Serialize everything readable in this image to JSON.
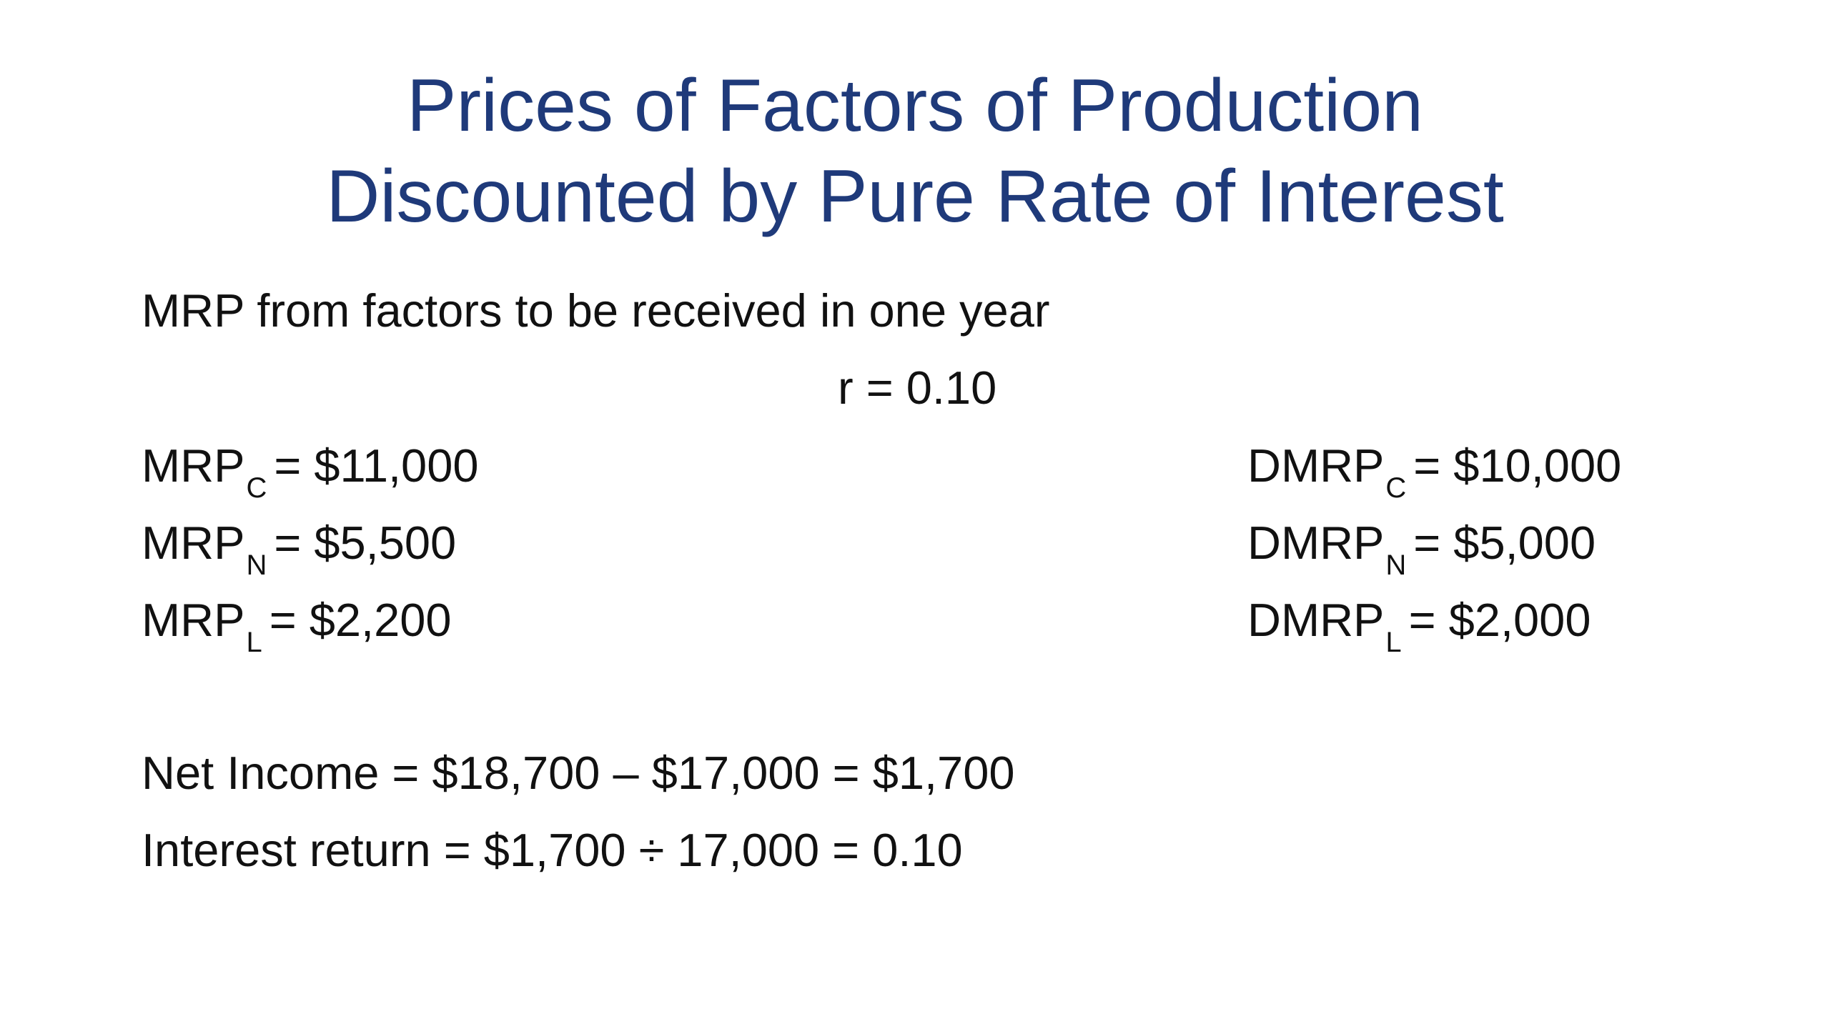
{
  "title": {
    "line1": "Prices of Factors of Production",
    "line2": "Discounted by Pure Rate of Interest"
  },
  "intro": "MRP from factors to be received in one year",
  "rate": "r = 0.10",
  "mrp": [
    {
      "base": "MRP",
      "sub": "C",
      "value": "= $11,000"
    },
    {
      "base": "MRP",
      "sub": "N",
      "value": "= $5,500"
    },
    {
      "base": "MRP",
      "sub": "L",
      "value": "= $2,200"
    }
  ],
  "dmrp": [
    {
      "base": "DMRP",
      "sub": "C",
      "value": "= $10,000"
    },
    {
      "base": "DMRP",
      "sub": "N",
      "value": "= $5,000"
    },
    {
      "base": "DMRP",
      "sub": "L",
      "value": "= $2,000"
    }
  ],
  "net_income": "Net Income = $18,700 – $17,000  = $1,700",
  "interest_return": "Interest return = $1,700 ÷ 17,000 = 0.10",
  "colors": {
    "title": "#1f3a7a",
    "body_text": "#111111",
    "background": "#ffffff"
  }
}
